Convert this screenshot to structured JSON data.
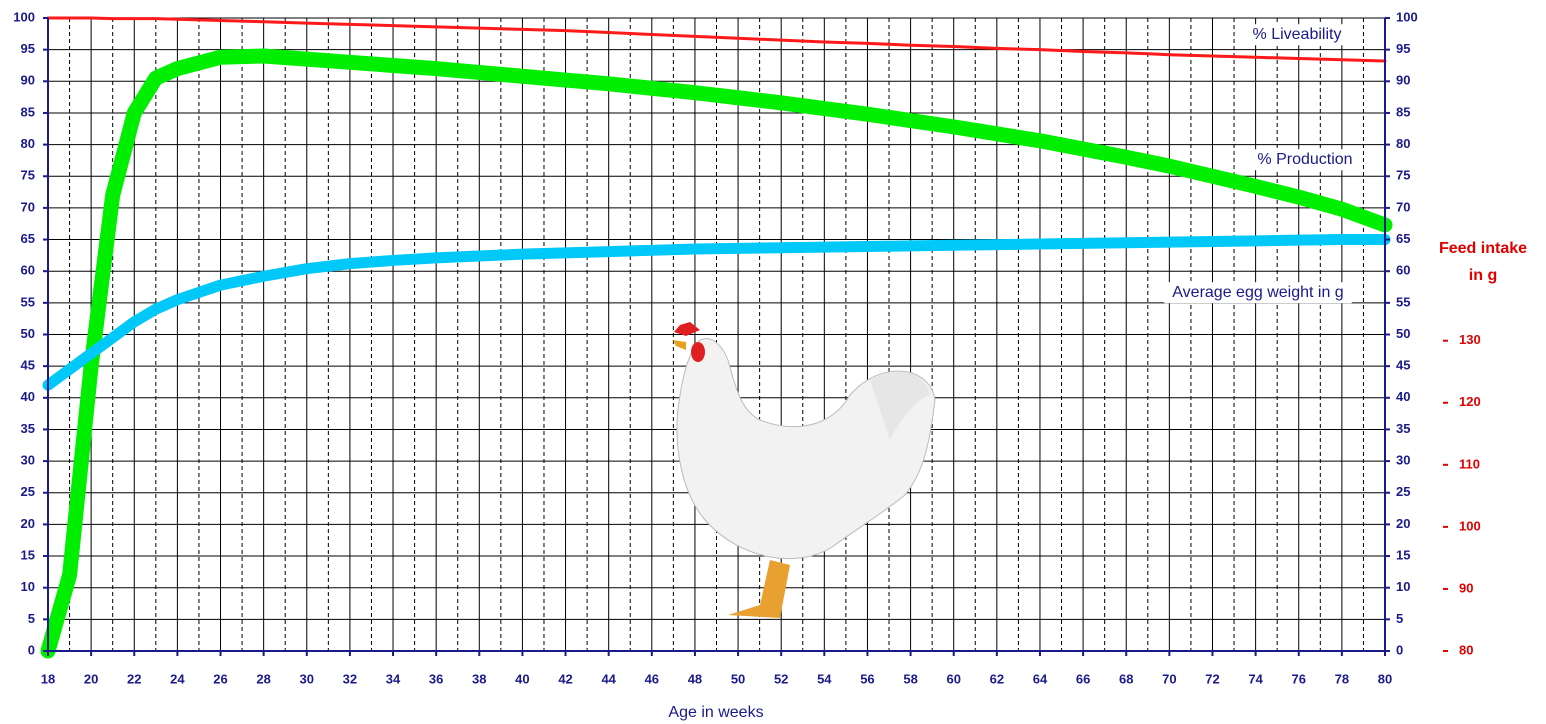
{
  "chart_data": {
    "type": "line",
    "x_label": "Age in weeks",
    "x": [
      18,
      19,
      20,
      21,
      22,
      23,
      24,
      26,
      28,
      30,
      32,
      34,
      36,
      38,
      40,
      42,
      44,
      46,
      48,
      50,
      52,
      54,
      56,
      58,
      60,
      62,
      64,
      66,
      68,
      70,
      72,
      74,
      76,
      78,
      80
    ],
    "series": [
      {
        "name": "% Liveability",
        "color": "#ff1a1a",
        "width": 3,
        "values": [
          100,
          100,
          100,
          99.9,
          99.9,
          99.9,
          99.8,
          99.6,
          99.4,
          99.2,
          99,
          98.8,
          98.6,
          98.4,
          98.2,
          98,
          97.7,
          97.4,
          97.1,
          96.8,
          96.5,
          96.2,
          96,
          95.7,
          95.5,
          95.2,
          95,
          94.7,
          94.5,
          94.2,
          94,
          93.8,
          93.6,
          93.4,
          93.2
        ]
      },
      {
        "name": "% Production",
        "color": "#00ee00",
        "width": 15,
        "values": [
          0,
          12,
          45,
          72,
          85,
          90.5,
          92,
          93.8,
          94,
          93.5,
          93,
          92.5,
          92,
          91.4,
          90.8,
          90.2,
          89.6,
          88.9,
          88.2,
          87.4,
          86.6,
          85.7,
          84.8,
          83.8,
          82.8,
          81.7,
          80.6,
          79.3,
          78,
          76.6,
          75,
          73.4,
          71.7,
          69.8,
          67.3
        ]
      },
      {
        "name": "Average egg weight in g",
        "color": "#00c8f8",
        "width": 11,
        "values": [
          42,
          44.5,
          47,
          49.5,
          52,
          54,
          55.5,
          57.8,
          59.2,
          60.4,
          61.2,
          61.7,
          62.1,
          62.4,
          62.7,
          62.9,
          63.1,
          63.3,
          63.5,
          63.6,
          63.7,
          63.8,
          63.9,
          64,
          64.1,
          64.2,
          64.3,
          64.4,
          64.5,
          64.6,
          64.7,
          64.8,
          64.9,
          65,
          65
        ]
      }
    ],
    "xlim": [
      18,
      80
    ],
    "xticks": [
      18,
      20,
      22,
      24,
      26,
      28,
      30,
      32,
      34,
      36,
      38,
      40,
      42,
      44,
      46,
      48,
      50,
      52,
      54,
      56,
      58,
      60,
      62,
      64,
      66,
      68,
      70,
      72,
      74,
      76,
      78,
      80
    ],
    "xminorticks": [
      19,
      21,
      23,
      25,
      27,
      29,
      31,
      33,
      35,
      37,
      39,
      41,
      43,
      45,
      47,
      49,
      51,
      53,
      55,
      57,
      59,
      61,
      63,
      65,
      67,
      69,
      71,
      73,
      75,
      77,
      79
    ],
    "ylim": [
      0,
      100
    ],
    "yticks": [
      0,
      5,
      10,
      15,
      20,
      25,
      30,
      35,
      40,
      45,
      50,
      55,
      60,
      65,
      70,
      75,
      80,
      85,
      90,
      95,
      100
    ],
    "y2lim": [
      0,
      100
    ],
    "y2ticks": [
      0,
      5,
      10,
      15,
      20,
      25,
      30,
      35,
      40,
      45,
      50,
      55,
      60,
      65,
      70,
      75,
      80,
      85,
      90,
      95,
      100
    ],
    "y3label": [
      "Feed intake",
      "in g"
    ],
    "y3lim": [
      80,
      182
    ],
    "y3ticks": [
      80,
      90,
      100,
      110,
      120,
      130
    ],
    "grid": true
  }
}
